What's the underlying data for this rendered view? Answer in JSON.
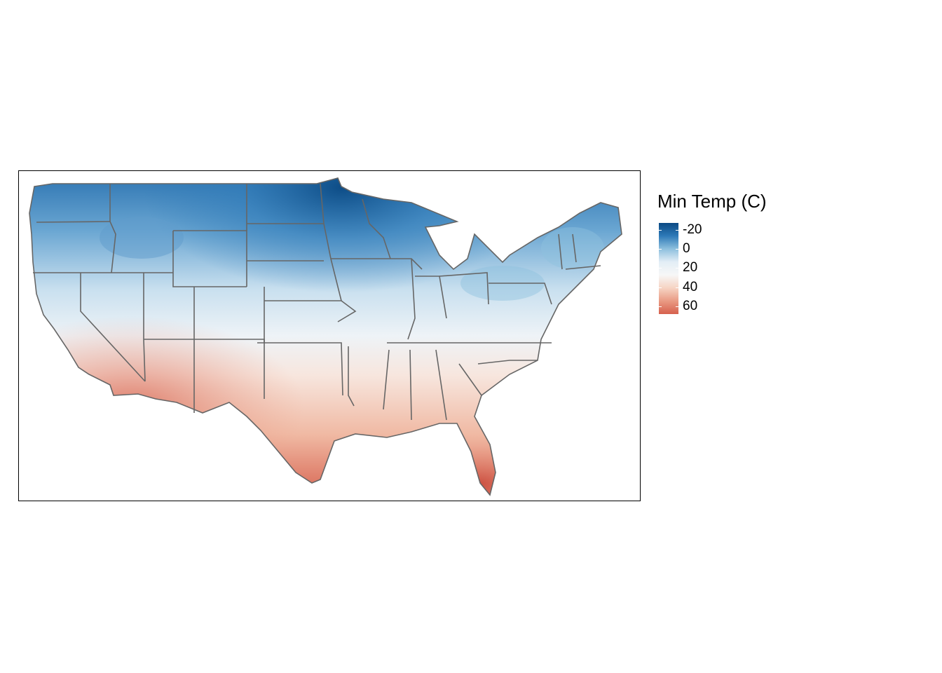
{
  "legend": {
    "title": "Min Temp (C)",
    "ticks": [
      "-20",
      "0",
      "20",
      "40",
      "60"
    ],
    "tick_values": [
      -20,
      0,
      20,
      40,
      60
    ],
    "range": [
      -27,
      68
    ],
    "colors": [
      "#0b4a84",
      "#2e7ab8",
      "#8ec0de",
      "#e3eef6",
      "#f7f7f7",
      "#f6d3c3",
      "#e99a83",
      "#d6604d"
    ]
  },
  "map": {
    "region": "contiguous United States",
    "boundary_color": "#666666"
  }
}
